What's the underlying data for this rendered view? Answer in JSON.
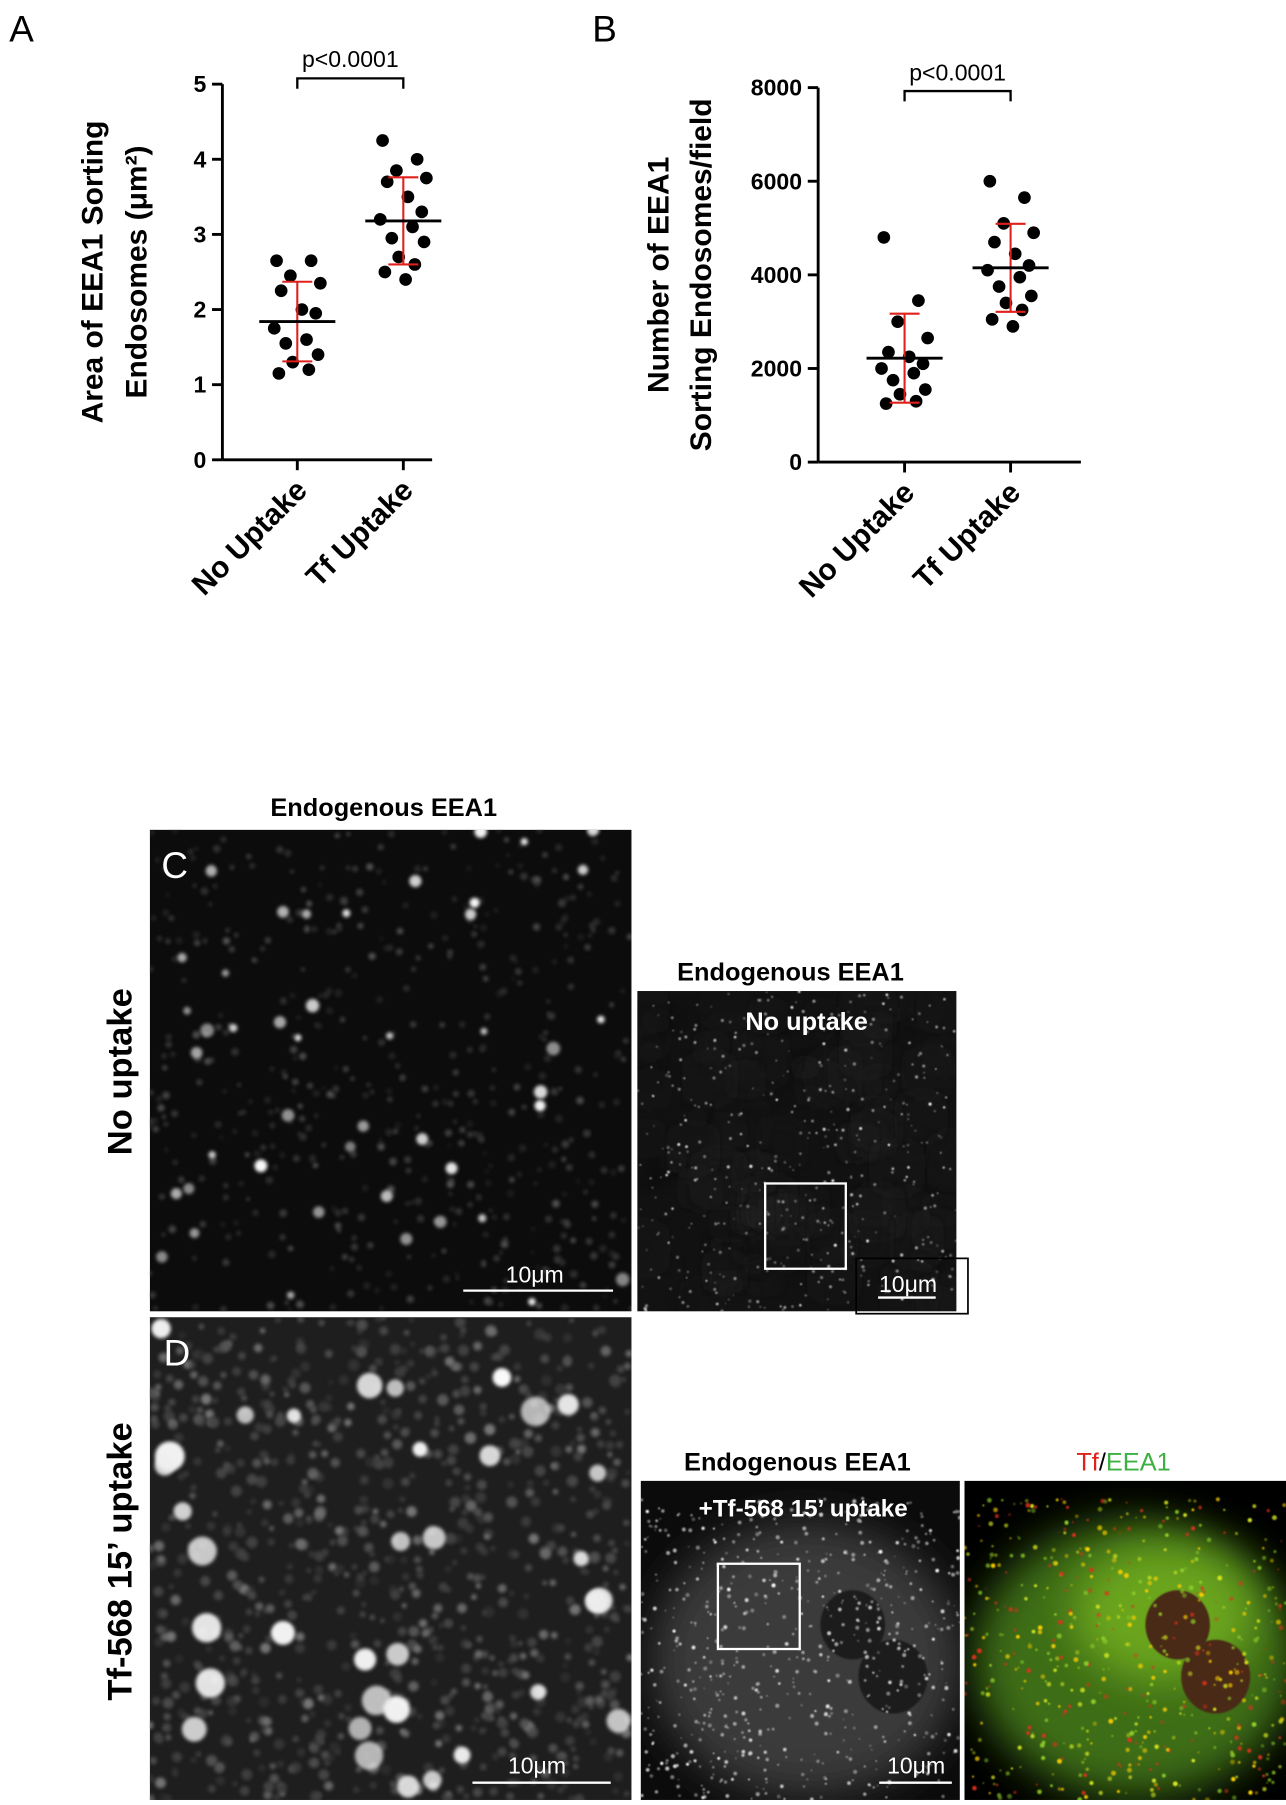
{
  "chart_data": [
    {
      "type": "strip",
      "ylabel": [
        "Area of EEA1 Sorting",
        "Endosomes (μm²)"
      ],
      "categories": [
        "No Uptake",
        "Tf Uptake"
      ],
      "points": [
        [
          2.65,
          2.65,
          2.45,
          2.35,
          2.25,
          2.0,
          1.95,
          1.75,
          1.6,
          1.55,
          1.4,
          1.3,
          1.2,
          1.15
        ],
        [
          4.25,
          4.0,
          3.85,
          3.75,
          3.7,
          3.5,
          3.3,
          3.2,
          3.1,
          2.95,
          2.9,
          2.7,
          2.6,
          2.5,
          2.4
        ]
      ],
      "means": [
        1.84,
        3.18
      ],
      "errors": [
        0.53,
        0.58
      ],
      "ylim": [
        0,
        5
      ],
      "yticks": [
        0,
        1,
        2,
        3,
        4,
        5
      ],
      "annotation": "p<0.0001",
      "color": "#000000",
      "error_color": "#e0201b"
    },
    {
      "type": "strip",
      "ylabel": [
        "Number of EEA1",
        "Sorting Endosomes/field"
      ],
      "categories": [
        "No Uptake",
        "Tf Uptake"
      ],
      "points": [
        [
          4800,
          3450,
          3000,
          2650,
          2350,
          2250,
          2100,
          2000,
          1900,
          1750,
          1550,
          1450,
          1300,
          1250
        ],
        [
          6000,
          5650,
          5100,
          4900,
          4700,
          4450,
          4200,
          4100,
          3950,
          3750,
          3550,
          3400,
          3250,
          3050,
          2900
        ]
      ],
      "means": [
        2220,
        4150
      ],
      "errors": [
        950,
        940
      ],
      "ylim": [
        0,
        8000
      ],
      "yticks": [
        0,
        2000,
        4000,
        6000,
        8000
      ],
      "annotation": "p<0.0001",
      "color": "#000000",
      "error_color": "#e0201b"
    }
  ],
  "figure": {
    "panel_labels": [
      "A",
      "B",
      "C",
      "D"
    ],
    "row_labels": [
      "No uptake",
      "Tf-568 15’ uptake"
    ],
    "image_titles": [
      "Endogenous EEA1",
      "Endogenous EEA1",
      "Endogenous EEA1"
    ],
    "image_overlays": [
      "No uptake",
      "+Tf-568 15’ uptake"
    ],
    "merge_title": [
      "Tf",
      "/",
      "EEA1"
    ],
    "scale_bars": [
      "10μm",
      "10μm",
      "10μm",
      "10μm"
    ]
  }
}
